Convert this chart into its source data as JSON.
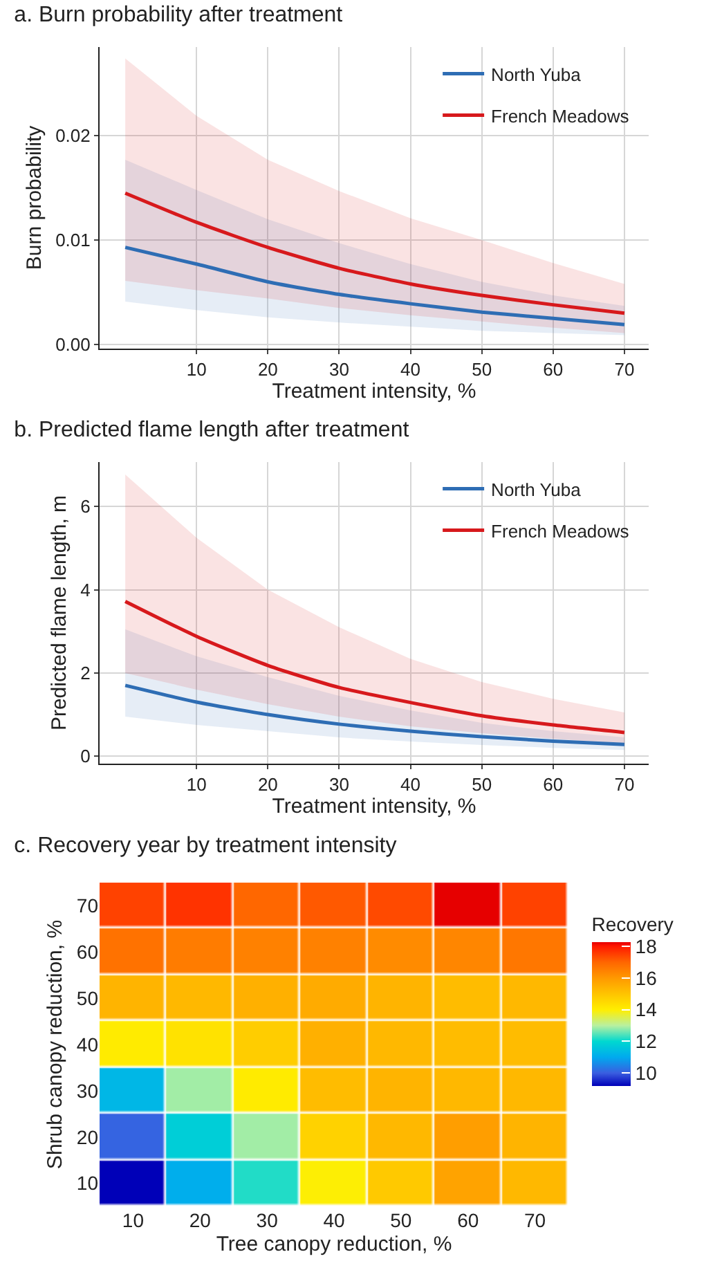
{
  "chart_data": [
    {
      "type": "line",
      "title": "a. Burn probability after treatment",
      "xlabel": "Treatment intensity, %",
      "ylabel": "Burn probability",
      "x": [
        0,
        10,
        20,
        30,
        40,
        50,
        60,
        70
      ],
      "series": [
        {
          "name": "North Yuba",
          "color": "#2e6db4",
          "values": [
            0.0093,
            0.0077,
            0.006,
            0.0048,
            0.0039,
            0.0031,
            0.0025,
            0.0019
          ],
          "lower": [
            0.0041,
            0.0033,
            0.0026,
            0.0021,
            0.0017,
            0.0013,
            0.0011,
            0.0009
          ],
          "upper": [
            0.0177,
            0.0148,
            0.012,
            0.0097,
            0.0077,
            0.006,
            0.0047,
            0.0037
          ]
        },
        {
          "name": "French Meadows",
          "color": "#d7191c",
          "values": [
            0.0145,
            0.0117,
            0.0093,
            0.0073,
            0.0058,
            0.0047,
            0.0038,
            0.003
          ],
          "lower": [
            0.0061,
            0.0052,
            0.0044,
            0.0035,
            0.0028,
            0.0022,
            0.0016,
            0.0011
          ],
          "upper": [
            0.0274,
            0.0219,
            0.0177,
            0.0147,
            0.0121,
            0.01,
            0.0078,
            0.0058
          ]
        }
      ],
      "xlim": [
        -3.6,
        73.4
      ],
      "ylim": [
        -0.0004,
        0.0285
      ],
      "xticks": [
        10,
        20,
        30,
        40,
        50,
        60,
        70
      ],
      "yticks": [
        {
          "value": 0,
          "label": "0.00"
        },
        {
          "value": 0.01,
          "label": "0.01"
        },
        {
          "value": 0.02,
          "label": "0.02"
        }
      ],
      "grid": true,
      "legend": "top right",
      "line_style": "solid"
    },
    {
      "type": "line",
      "title": "b. Predicted flame length after treatment",
      "xlabel": "Treatment intensity, %",
      "ylabel": "Predicted flame length, m",
      "x": [
        0,
        10,
        20,
        30,
        40,
        50,
        60,
        70
      ],
      "series": [
        {
          "name": "North Yuba",
          "color": "#2e6db4",
          "values": [
            1.7,
            1.3,
            1.0,
            0.77,
            0.6,
            0.47,
            0.36,
            0.28
          ],
          "lower": [
            0.95,
            0.75,
            0.6,
            0.45,
            0.35,
            0.27,
            0.2,
            0.15
          ],
          "upper": [
            3.05,
            2.4,
            1.9,
            1.45,
            1.1,
            0.8,
            0.6,
            0.45
          ]
        },
        {
          "name": "French Meadows",
          "color": "#d7191c",
          "values": [
            3.72,
            2.88,
            2.18,
            1.65,
            1.29,
            0.97,
            0.75,
            0.57
          ],
          "lower": [
            2.0,
            1.6,
            1.25,
            0.95,
            0.72,
            0.55,
            0.42,
            0.3
          ],
          "upper": [
            6.77,
            5.25,
            4.0,
            3.1,
            2.34,
            1.78,
            1.38,
            1.05
          ]
        }
      ],
      "xlim": [
        -3.6,
        73.4
      ],
      "ylim": [
        -0.18,
        7.07
      ],
      "xticks": [
        10,
        20,
        30,
        40,
        50,
        60,
        70
      ],
      "yticks": [
        0,
        2,
        4,
        6
      ],
      "grid": true,
      "legend": "top right",
      "line_style": "solid"
    },
    {
      "type": "heatmap",
      "title": "c. Recovery year by treatment intensity",
      "xlabel": "Tree canopy reduction, %",
      "ylabel": "Shrub canopy reduction, %",
      "clabel": "Recovery",
      "categories": [
        "10",
        "20",
        "30",
        "40",
        "50",
        "60",
        "70"
      ],
      "y_categories": [
        "70",
        "60",
        "50",
        "40",
        "30",
        "20",
        "10"
      ],
      "cells": [
        [
          17.5,
          17.7,
          17.0,
          17.2,
          17.4,
          18.3,
          17.5
        ],
        [
          16.8,
          16.6,
          16.5,
          16.5,
          16.3,
          16.4,
          16.7
        ],
        [
          15.4,
          15.3,
          15.5,
          15.6,
          15.4,
          15.2,
          15.3
        ],
        [
          14.1,
          14.3,
          14.8,
          15.5,
          15.3,
          15.2,
          15.2
        ],
        [
          11.3,
          12.9,
          14.1,
          15.2,
          15.4,
          15.3,
          15.3
        ],
        [
          10.1,
          11.8,
          12.9,
          14.7,
          15.3,
          15.9,
          15.4
        ],
        [
          9.2,
          11.1,
          12.2,
          14.0,
          14.9,
          15.8,
          15.3
        ]
      ],
      "clim": [
        9.2,
        18.3
      ],
      "cticks": [
        10,
        12,
        14,
        16,
        18
      ]
    }
  ]
}
